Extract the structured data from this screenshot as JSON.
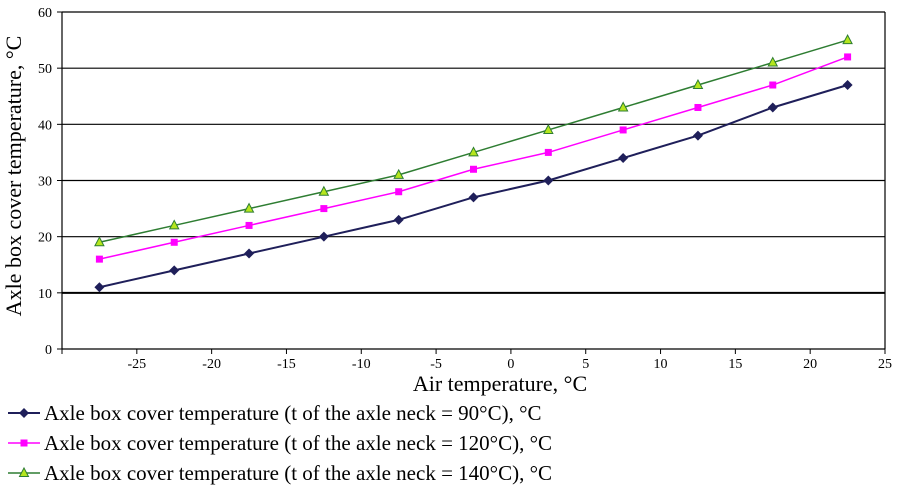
{
  "chart_data": {
    "type": "line",
    "xlabel": "Air temperature, °C",
    "ylabel": "Axle box cover temperature, °C",
    "xlim": [
      -30,
      25
    ],
    "ylim": [
      0,
      60
    ],
    "x_ticks": [
      "-25",
      "-20",
      "-15",
      "-10",
      "-5",
      "0",
      "5",
      "10",
      "15",
      "20",
      "25"
    ],
    "y_ticks": [
      "0",
      "10",
      "20",
      "30",
      "40",
      "50",
      "60"
    ],
    "grid": "horizontal",
    "legend_position": "bottom",
    "x": [
      -27.5,
      -22.5,
      -17.5,
      -12.5,
      -7.5,
      -2.5,
      2.5,
      7.5,
      12.5,
      17.5,
      22.5
    ],
    "series": [
      {
        "name": "Axle box cover temperature (t of the axle neck = 90°C), °C",
        "color": "#1f1f5a",
        "marker": "diamond",
        "values": [
          11,
          14,
          17,
          20,
          23,
          27,
          30,
          34,
          38,
          43,
          47
        ]
      },
      {
        "name": "Axle box cover temperature (t of the axle neck = 120°C), °C",
        "color": "#ff00ff",
        "marker": "square",
        "values": [
          16,
          19,
          22,
          25,
          28,
          32,
          35,
          39,
          43,
          47,
          52
        ]
      },
      {
        "name": "Axle box cover temperature (t of the axle neck = 140°C), °C",
        "color": "#2e7d32",
        "marker_fill": "#b5e61d",
        "marker": "triangle",
        "values": [
          19,
          22,
          25,
          28,
          31,
          35,
          39,
          43,
          47,
          51,
          55
        ]
      }
    ]
  }
}
